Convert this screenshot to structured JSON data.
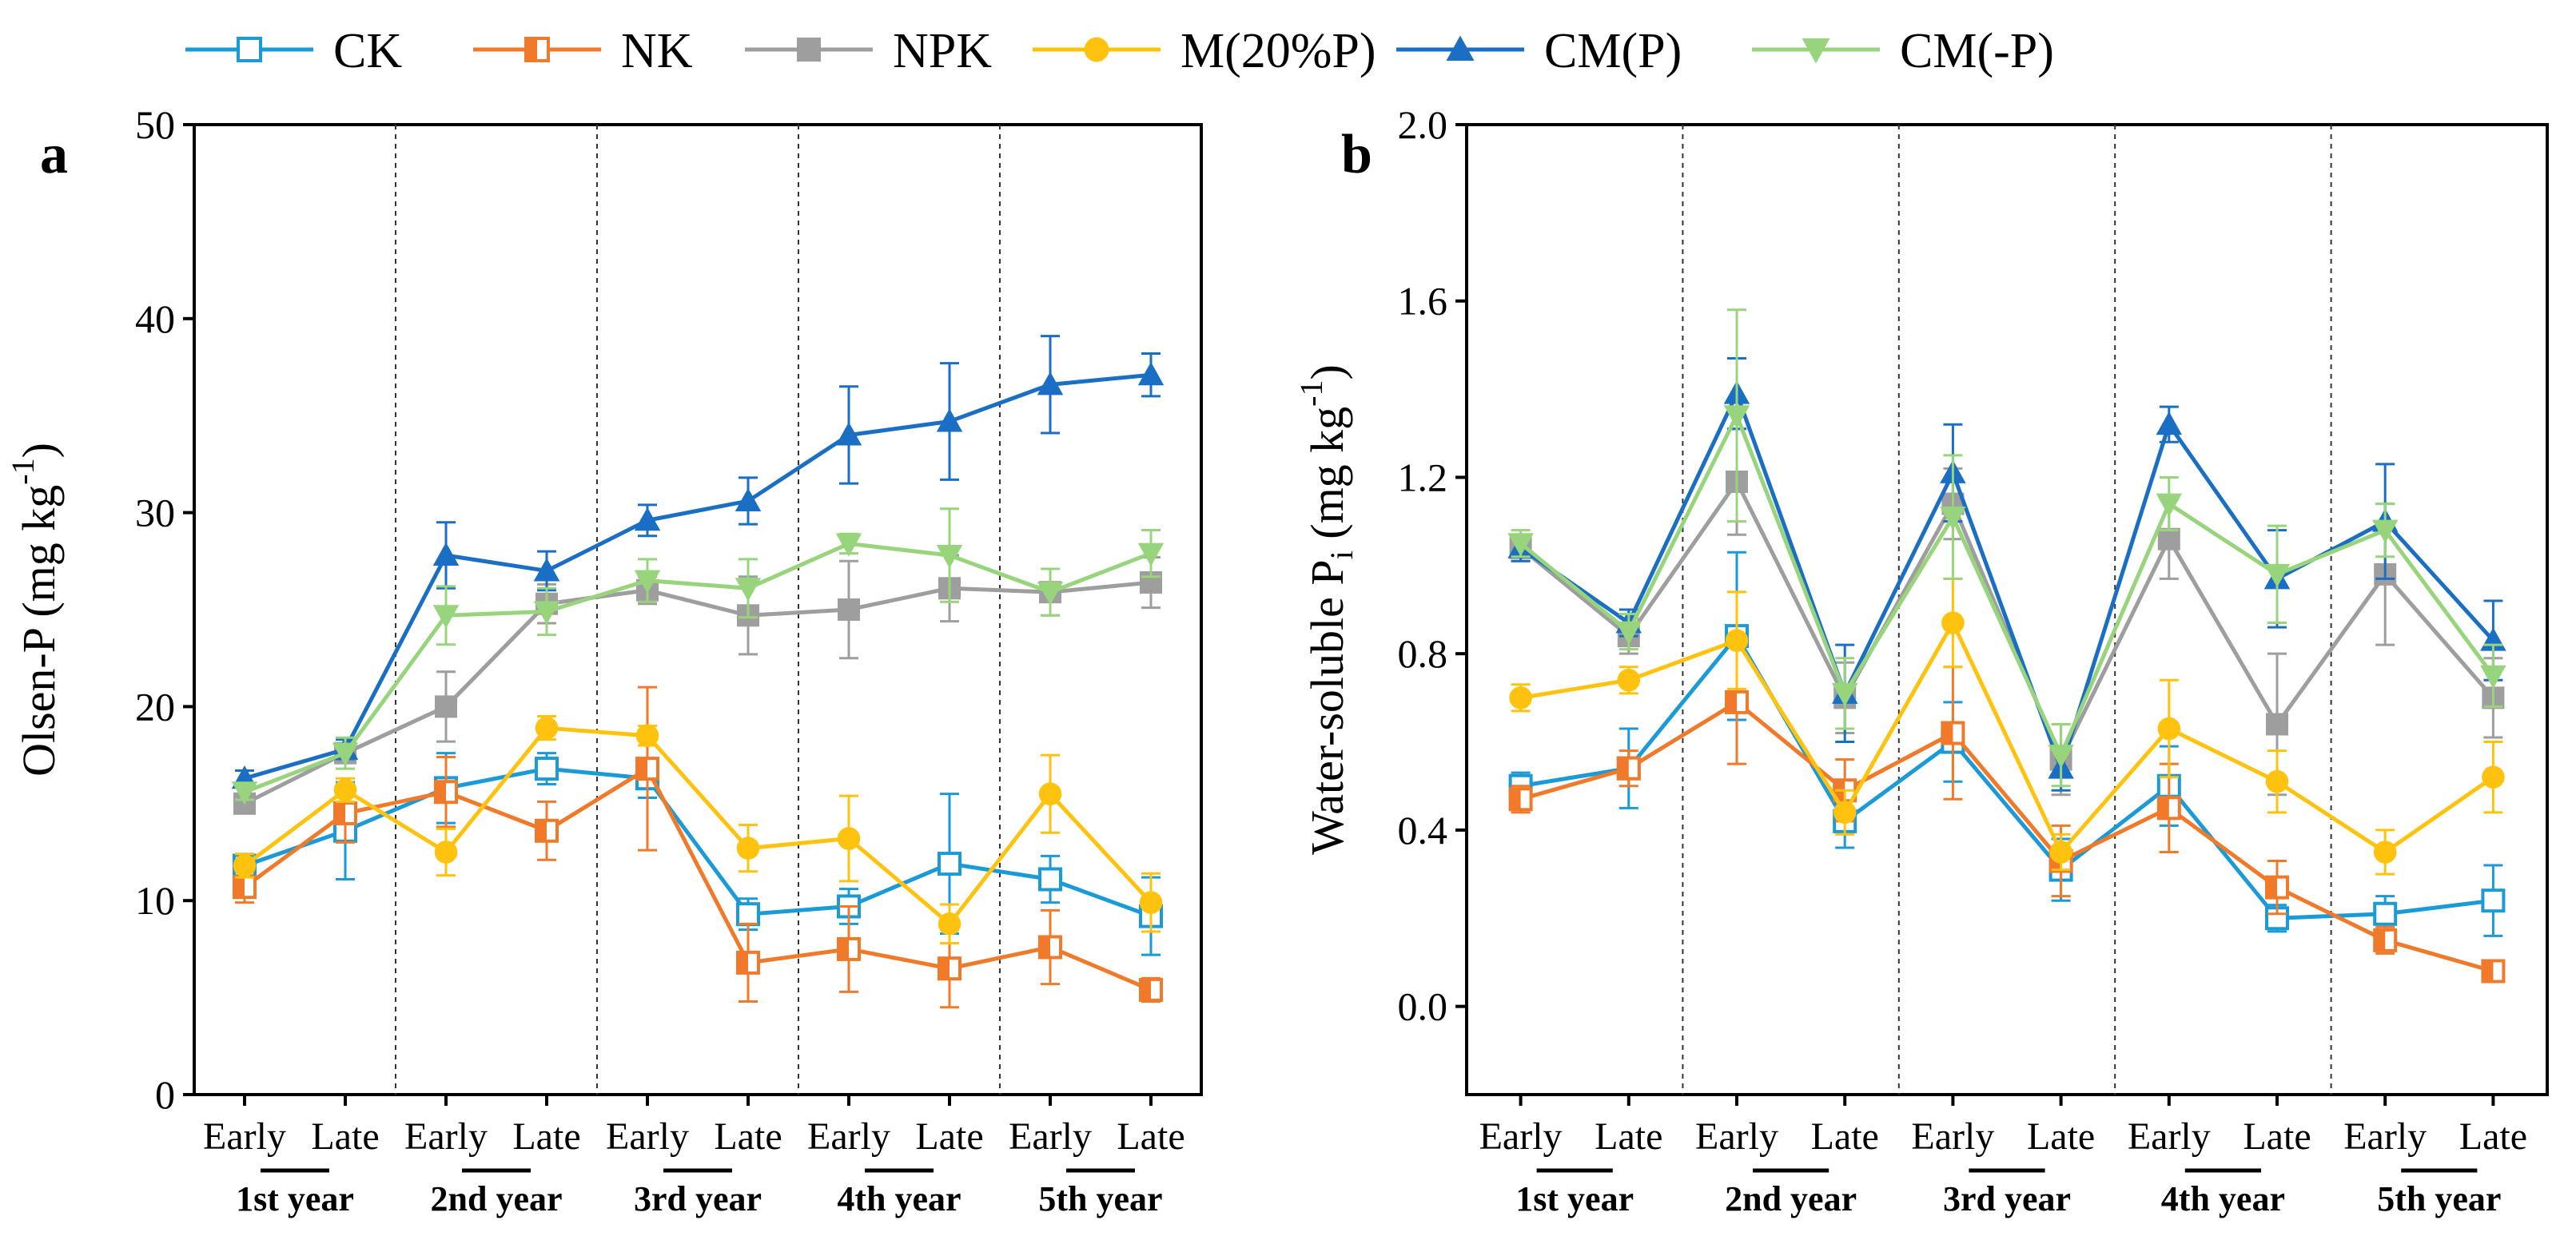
{
  "chart_data": [
    {
      "type": "line",
      "panel_label": "a",
      "ylabel": {
        "main": "Olsen-P (mg kg",
        "sup": "-1",
        "close": ")"
      },
      "ylim": [
        0,
        50
      ],
      "yticks": [
        "0",
        "10",
        "20",
        "30",
        "40",
        "50"
      ],
      "x_labels": [
        "Early",
        "Late",
        "Early",
        "Late",
        "Early",
        "Late",
        "Early",
        "Late",
        "Early",
        "Late"
      ],
      "groups": [
        "1st year",
        "2nd year",
        "3rd year",
        "4th year",
        "5th year"
      ],
      "series": [
        {
          "name": "CK",
          "color": "#1a9ad6",
          "marker": "square-open",
          "values": [
            11.8,
            13.6,
            15.8,
            16.8,
            16.3,
            9.3,
            9.7,
            11.9,
            11.1,
            9.2
          ],
          "errors": [
            0.6,
            2.5,
            1.8,
            0.8,
            1.0,
            0.8,
            0.9,
            3.6,
            1.2,
            2.0
          ]
        },
        {
          "name": "NK",
          "color": "#f07a2a",
          "marker": "square-half",
          "values": [
            10.7,
            14.5,
            15.6,
            13.6,
            16.8,
            6.8,
            7.5,
            6.5,
            7.6,
            5.4
          ],
          "errors": [
            0.8,
            1.5,
            1.8,
            1.5,
            4.2,
            2.0,
            2.2,
            2.0,
            1.9,
            0.6
          ]
        },
        {
          "name": "NPK",
          "color": "#9e9e9e",
          "marker": "square",
          "values": [
            15.0,
            17.6,
            20.0,
            25.3,
            26.0,
            24.7,
            25.0,
            26.1,
            25.9,
            26.4
          ],
          "errors": [
            0.5,
            0.5,
            1.8,
            1.0,
            0.7,
            2.0,
            2.5,
            1.7,
            1.2,
            1.3
          ]
        },
        {
          "name": "M(20%P)",
          "color": "#ffc20e",
          "marker": "circle",
          "values": [
            11.8,
            15.7,
            12.5,
            18.9,
            18.5,
            12.7,
            13.2,
            8.8,
            15.5,
            9.9
          ],
          "errors": [
            0.6,
            0.6,
            1.2,
            0.6,
            0.5,
            1.2,
            2.2,
            1.0,
            2.0,
            1.5
          ]
        },
        {
          "name": "CM(P)",
          "color": "#1a6fc4",
          "marker": "triangle-up",
          "values": [
            16.3,
            17.8,
            27.8,
            27.0,
            29.6,
            30.6,
            34.0,
            34.7,
            36.6,
            37.1
          ],
          "errors": [
            0.4,
            0.5,
            1.7,
            1.0,
            0.8,
            1.2,
            2.5,
            3.0,
            2.5,
            1.1
          ]
        },
        {
          "name": "CM(-P)",
          "color": "#97d47c",
          "marker": "triangle-down",
          "values": [
            15.6,
            17.6,
            24.7,
            24.9,
            26.5,
            26.1,
            28.4,
            27.8,
            25.9,
            27.9
          ],
          "errors": [
            0.4,
            0.8,
            1.5,
            1.2,
            1.1,
            1.5,
            0.5,
            2.4,
            1.2,
            1.2
          ]
        }
      ]
    },
    {
      "type": "line",
      "panel_label": "b",
      "ylabel": {
        "main": "Water-soluble P",
        "sub": "i",
        "mid": " (mg kg",
        "sup": "-1",
        "close": ")"
      },
      "ylim": [
        -0.2,
        2.0
      ],
      "yticks": [
        "0.0",
        "0.4",
        "0.8",
        "1.2",
        "1.6",
        "2.0"
      ],
      "x_labels": [
        "Early",
        "Late",
        "Early",
        "Late",
        "Early",
        "Late",
        "Early",
        "Late",
        "Early",
        "Late"
      ],
      "groups": [
        "1st year",
        "2nd year",
        "3rd year",
        "4th year",
        "5th year"
      ],
      "series": [
        {
          "name": "CK",
          "color": "#1a9ad6",
          "marker": "square-open",
          "values": [
            0.5,
            0.54,
            0.84,
            0.42,
            0.6,
            0.31,
            0.5,
            0.2,
            0.21,
            0.24
          ],
          "errors": [
            0.03,
            0.09,
            0.19,
            0.06,
            0.09,
            0.07,
            0.09,
            0.03,
            0.04,
            0.08
          ]
        },
        {
          "name": "NK",
          "color": "#f07a2a",
          "marker": "square-half",
          "values": [
            0.47,
            0.54,
            0.69,
            0.49,
            0.62,
            0.33,
            0.45,
            0.27,
            0.15,
            0.08
          ],
          "errors": [
            0.03,
            0.04,
            0.14,
            0.07,
            0.15,
            0.08,
            0.1,
            0.06,
            0.03,
            0.02
          ]
        },
        {
          "name": "NPK",
          "color": "#9e9e9e",
          "marker": "square",
          "values": [
            1.04,
            0.84,
            1.19,
            0.7,
            1.14,
            0.56,
            1.06,
            0.64,
            0.98,
            0.7
          ],
          "errors": [
            0.03,
            0.04,
            0.12,
            0.08,
            0.08,
            0.08,
            0.09,
            0.16,
            0.16,
            0.09
          ]
        },
        {
          "name": "M(20%P)",
          "color": "#ffc20e",
          "marker": "circle",
          "values": [
            0.7,
            0.74,
            0.83,
            0.44,
            0.87,
            0.35,
            0.63,
            0.51,
            0.35,
            0.52
          ],
          "errors": [
            0.03,
            0.03,
            0.11,
            0.05,
            0.1,
            0.04,
            0.11,
            0.07,
            0.05,
            0.08
          ]
        },
        {
          "name": "CM(P)",
          "color": "#1a6fc4",
          "marker": "triangle-up",
          "values": [
            1.04,
            0.87,
            1.39,
            0.71,
            1.21,
            0.54,
            1.32,
            0.97,
            1.1,
            0.83
          ],
          "errors": [
            0.03,
            0.03,
            0.08,
            0.11,
            0.11,
            0.05,
            0.04,
            0.11,
            0.13,
            0.09
          ]
        },
        {
          "name": "CM(-P)",
          "color": "#97d47c",
          "marker": "triangle-down",
          "values": [
            1.05,
            0.85,
            1.34,
            0.71,
            1.11,
            0.57,
            1.14,
            0.98,
            1.08,
            0.75
          ],
          "errors": [
            0.03,
            0.04,
            0.24,
            0.08,
            0.14,
            0.07,
            0.06,
            0.11,
            0.06,
            0.07
          ]
        }
      ]
    }
  ]
}
